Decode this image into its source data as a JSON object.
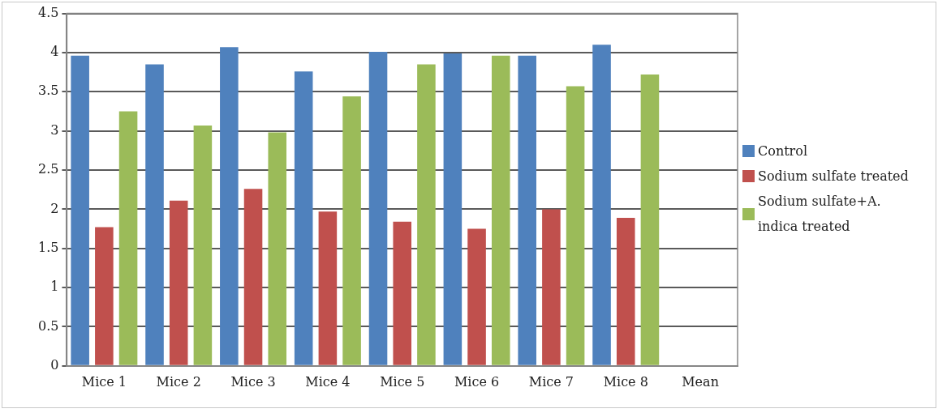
{
  "chart_data": {
    "type": "bar",
    "categories": [
      "Mice 1",
      "Mice 2",
      "Mice 3",
      "Mice 4",
      "Mice 5",
      "Mice 6",
      "Mice 7",
      "Mice 8",
      "Mean"
    ],
    "series": [
      {
        "name": "Control",
        "color": "#4f81bd",
        "values": [
          3.96,
          3.85,
          4.07,
          3.76,
          4.01,
          3.99,
          3.96,
          4.1,
          null
        ]
      },
      {
        "name": "Sodium sulfate treated",
        "color": "#c0504d",
        "values": [
          1.77,
          2.11,
          2.26,
          1.97,
          1.84,
          1.75,
          2.0,
          1.89,
          null
        ]
      },
      {
        "name": "Sodium sulfate+A. indica treated",
        "color": "#9bbb59",
        "values": [
          3.25,
          3.07,
          2.98,
          3.44,
          3.85,
          3.96,
          3.57,
          3.72,
          null
        ]
      }
    ],
    "ylim": [
      0,
      4.5
    ],
    "yticks": [
      0,
      0.5,
      1,
      1.5,
      2,
      2.5,
      3,
      3.5,
      4,
      4.5
    ],
    "grid": "y",
    "legend": "right"
  }
}
